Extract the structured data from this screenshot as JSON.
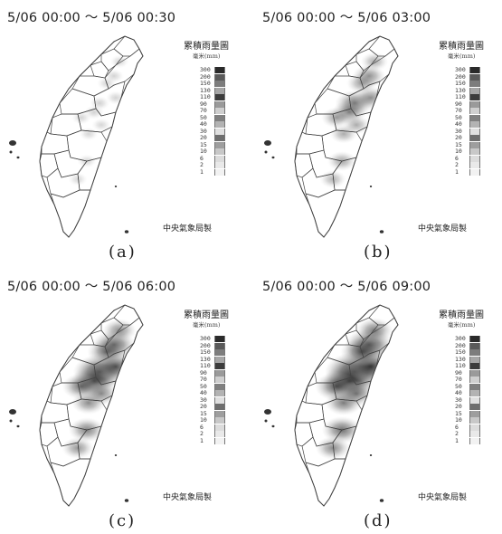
{
  "legend_title": "累積雨量圖",
  "legend_unit": "毫米(mm)",
  "credit": "中央氣象局製",
  "scale_levels": [
    "300",
    "200",
    "150",
    "130",
    "110",
    "90",
    "70",
    "50",
    "40",
    "30",
    "20",
    "15",
    "10",
    "6",
    "2",
    "1"
  ],
  "scale_colors": [
    "#2a2a2a",
    "#5a5a5a",
    "#7d7d7d",
    "#a6a6a6",
    "#3c3c3c",
    "#9a9a9a",
    "#cfcfcf",
    "#808080",
    "#b3b3b3",
    "#e0e0e0",
    "#6e6e6e",
    "#9e9e9e",
    "#c8c8c8",
    "#dcdcdc",
    "#e9e9e9",
    "#f2f2f2"
  ],
  "panels": [
    {
      "time_range": "5/06 00:00 ～ 5/06 00:30",
      "caption": "(a)",
      "intensity": 0.05
    },
    {
      "time_range": "5/06 00:00 ～ 5/06 03:00",
      "caption": "(b)",
      "intensity": 0.45
    },
    {
      "time_range": "5/06 00:00 ～ 5/06 06:00",
      "caption": "(c)",
      "intensity": 0.75
    },
    {
      "time_range": "5/06 00:00 ～ 5/06 09:00",
      "caption": "(d)",
      "intensity": 0.9
    }
  ]
}
